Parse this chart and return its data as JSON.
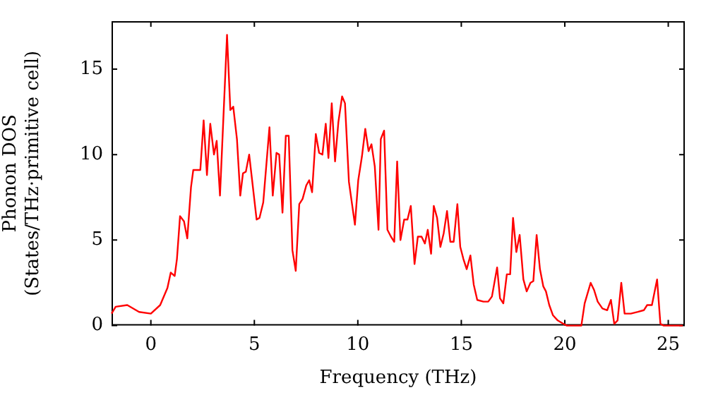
{
  "chart_data": {
    "type": "line",
    "xlabel": "Frequency (THz)",
    "ylabel": "Phonon DOS\n(States/THz·primitive cell)",
    "xlim": [
      -1.9,
      25.8
    ],
    "ylim": [
      0,
      17.8
    ],
    "xticks": [
      0,
      5,
      10,
      15,
      20,
      25
    ],
    "yticks": [
      0,
      5,
      10,
      15
    ],
    "grid": false,
    "legend": false,
    "series": [
      {
        "color": "#ff0000",
        "x": [
          -1.9,
          -1.7,
          -1.14,
          -0.57,
          0.0,
          0.45,
          0.8,
          0.96,
          1.15,
          1.26,
          1.41,
          1.6,
          1.76,
          1.94,
          2.05,
          2.39,
          2.55,
          2.71,
          2.87,
          3.05,
          3.18,
          3.34,
          3.68,
          3.84,
          3.98,
          4.16,
          4.32,
          4.45,
          4.59,
          4.75,
          5.11,
          5.25,
          5.43,
          5.73,
          5.89,
          6.07,
          6.2,
          6.36,
          6.52,
          6.66,
          6.84,
          7.0,
          7.17,
          7.33,
          7.51,
          7.65,
          7.79,
          7.97,
          8.13,
          8.29,
          8.45,
          8.58,
          8.74,
          8.9,
          9.06,
          9.24,
          9.38,
          9.57,
          9.86,
          10.02,
          10.2,
          10.36,
          10.52,
          10.66,
          10.82,
          11.0,
          11.11,
          11.27,
          11.43,
          11.6,
          11.76,
          11.9,
          12.06,
          12.24,
          12.4,
          12.56,
          12.74,
          12.9,
          13.08,
          13.24,
          13.38,
          13.54,
          13.67,
          13.83,
          13.99,
          14.15,
          14.31,
          14.47,
          14.63,
          14.81,
          14.95,
          15.1,
          15.26,
          15.44,
          15.6,
          15.77,
          16.07,
          16.3,
          16.48,
          16.73,
          16.87,
          17.03,
          17.2,
          17.36,
          17.5,
          17.66,
          17.82,
          18.0,
          18.16,
          18.34,
          18.48,
          18.64,
          18.8,
          18.96,
          19.09,
          19.25,
          19.43,
          19.66,
          19.94,
          20.1,
          20.8,
          20.96,
          21.25,
          21.41,
          21.59,
          21.82,
          22.05,
          22.23,
          22.39,
          22.55,
          22.73,
          22.89,
          23.19,
          23.53,
          23.82,
          23.98,
          24.21,
          24.46,
          24.62,
          24.78,
          25.7
        ],
        "values": [
          0.7,
          1.1,
          1.2,
          0.8,
          0.7,
          1.2,
          2.2,
          3.1,
          2.9,
          3.9,
          6.4,
          6.1,
          5.1,
          8.1,
          9.1,
          9.1,
          12.0,
          8.8,
          11.8,
          10.0,
          10.8,
          7.6,
          17.0,
          12.6,
          12.8,
          10.9,
          7.6,
          8.9,
          9.0,
          10.0,
          6.2,
          6.3,
          7.2,
          11.6,
          7.6,
          10.1,
          10.0,
          6.6,
          11.1,
          11.1,
          4.4,
          3.2,
          7.1,
          7.4,
          8.2,
          8.5,
          7.8,
          11.2,
          10.1,
          10.0,
          11.8,
          9.8,
          13.0,
          9.6,
          11.9,
          13.4,
          13.0,
          8.4,
          5.9,
          8.5,
          9.9,
          11.5,
          10.2,
          10.6,
          9.3,
          5.6,
          10.9,
          11.4,
          5.6,
          5.2,
          4.9,
          9.6,
          5.0,
          6.2,
          6.2,
          7.0,
          3.6,
          5.2,
          5.2,
          4.8,
          5.6,
          4.2,
          7.0,
          6.3,
          4.6,
          5.4,
          6.7,
          4.9,
          4.9,
          7.1,
          4.6,
          3.9,
          3.3,
          4.1,
          2.4,
          1.5,
          1.4,
          1.4,
          1.7,
          3.4,
          1.6,
          1.3,
          3.0,
          3.0,
          6.3,
          4.3,
          5.3,
          2.7,
          2.0,
          2.5,
          2.6,
          5.3,
          3.3,
          2.3,
          2.0,
          1.2,
          0.6,
          0.3,
          0.1,
          0,
          0,
          1.3,
          2.5,
          2.1,
          1.4,
          1.0,
          0.9,
          1.5,
          0.1,
          0.3,
          2.5,
          0.7,
          0.7,
          0.8,
          0.9,
          1.2,
          1.2,
          2.7,
          0.1,
          0,
          0
        ]
      }
    ]
  }
}
